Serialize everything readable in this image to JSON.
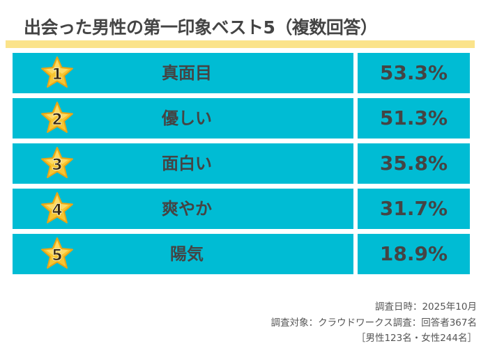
{
  "chart_data": {
    "type": "table",
    "title": "出会った男性の第一印象ベスト5（複数回答）",
    "columns": [
      "rank",
      "impression",
      "percent"
    ],
    "rows": [
      {
        "rank": "1",
        "label": "真面目",
        "value": 53.3,
        "display": "53.3%"
      },
      {
        "rank": "2",
        "label": "優しい",
        "value": 51.3,
        "display": "51.3%"
      },
      {
        "rank": "3",
        "label": "面白い",
        "value": 35.8,
        "display": "35.8%"
      },
      {
        "rank": "4",
        "label": "爽やか",
        "value": 31.7,
        "display": "31.7%"
      },
      {
        "rank": "5",
        "label": "陽気",
        "value": 18.9,
        "display": "18.9%"
      }
    ]
  },
  "footer": {
    "date": "調査日時：2025年10月",
    "target": "調査対象：クラウドワークス調査：回答者367名",
    "breakdown": "［男性123名・女性244名］"
  },
  "colors": {
    "cell": "#00bcd4",
    "accent_bar": "#fbe38a",
    "star": "#f7c531",
    "text": "#444444"
  }
}
